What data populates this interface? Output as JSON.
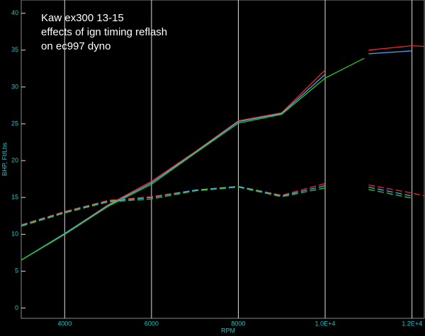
{
  "chart_data": {
    "type": "line",
    "title": [
      "Kaw ex300 13-15",
      "effects of ign timing reflash",
      "on ec997 dyno"
    ],
    "x_label": "RPM",
    "y_label": "BHP, Ft/Lbs",
    "x": [
      3000,
      4000,
      5000,
      6000,
      7000,
      8000,
      9000,
      10000,
      10900,
      11000,
      12000,
      12300
    ],
    "xlim": [
      3000,
      12300
    ],
    "xticks": [
      4000,
      6000,
      8000,
      {
        "value": 10000,
        "label": "1.0E+4"
      },
      {
        "value": 12000,
        "label": "1.2E+4"
      }
    ],
    "ylim": [
      -1.4,
      41.8
    ],
    "yticks": [
      0,
      5,
      10,
      15,
      20,
      25,
      30,
      35,
      40
    ],
    "grid": true,
    "series": [
      {
        "color": "#ff2020",
        "style": "solid",
        "values": [
          6.5,
          10.1,
          14.0,
          17.2,
          21.2,
          25.4,
          26.5,
          32.3,
          null,
          35.0,
          35.6,
          35.5
        ]
      },
      {
        "color": "#4aa8ff",
        "style": "solid",
        "values": [
          6.5,
          10.1,
          13.9,
          17.0,
          21.1,
          25.3,
          26.4,
          31.7,
          null,
          34.5,
          34.9,
          null
        ]
      },
      {
        "color": "#20d020",
        "style": "solid",
        "values": [
          6.5,
          10.0,
          13.8,
          16.8,
          21.0,
          25.1,
          26.3,
          31.2,
          33.9,
          null,
          null,
          null
        ]
      },
      {
        "color": "#ff2020",
        "style": "dashed",
        "values": [
          11.3,
          13.1,
          14.6,
          15.1,
          16.0,
          16.5,
          15.3,
          16.9,
          null,
          16.7,
          15.6,
          15.2
        ]
      },
      {
        "color": "#4aa8ff",
        "style": "dashed",
        "values": [
          11.2,
          13.0,
          14.5,
          15.0,
          16.0,
          16.5,
          15.2,
          16.6,
          null,
          16.4,
          15.2,
          null
        ]
      },
      {
        "color": "#20d020",
        "style": "dashed",
        "values": [
          11.1,
          12.9,
          14.4,
          14.8,
          15.9,
          16.4,
          15.1,
          16.3,
          null,
          16.1,
          14.9,
          null
        ]
      }
    ]
  }
}
